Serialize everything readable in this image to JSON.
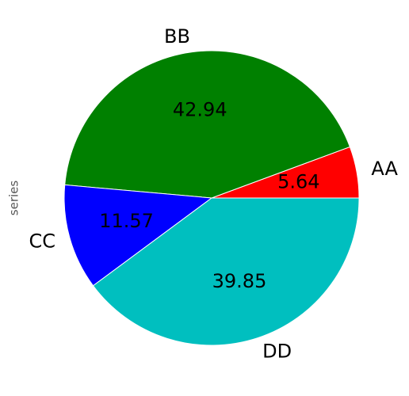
{
  "chart_data": {
    "type": "pie",
    "ylabel": "series",
    "categories": [
      "AA",
      "BB",
      "CC",
      "DD"
    ],
    "values": [
      5.64,
      42.94,
      11.57,
      39.85
    ],
    "colors": [
      "#ff0000",
      "#008000",
      "#0000ff",
      "#00bfbf"
    ]
  }
}
